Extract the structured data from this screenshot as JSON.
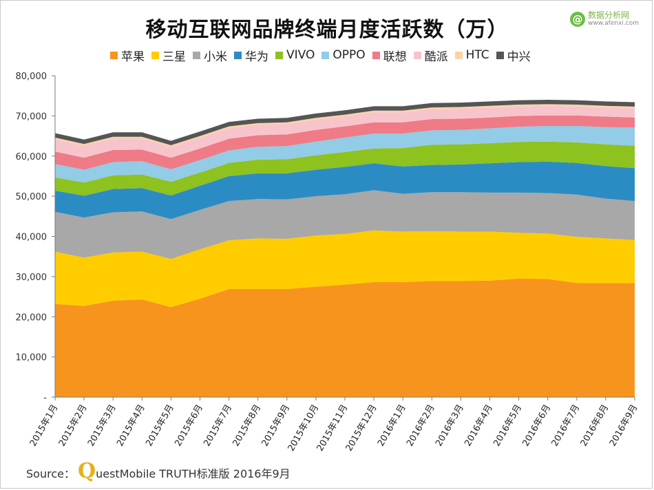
{
  "logo": {
    "mark": "@",
    "name": "数据分析网",
    "url": "www.afenxi.com"
  },
  "source": {
    "prefix": "Source：",
    "q": "Q",
    "rest": "uestMobile TRUTH标准版 2016年9月"
  },
  "chart_data": {
    "type": "area",
    "stacked": true,
    "title": "移动互联网品牌终端月度活跃数（万）",
    "xlabel": "",
    "ylabel": "",
    "ylim": [
      0,
      80000
    ],
    "yticks": [
      0,
      10000,
      20000,
      30000,
      40000,
      50000,
      60000,
      70000,
      80000
    ],
    "ytick_labels": [
      "-",
      "10,000",
      "20,000",
      "30,000",
      "40,000",
      "50,000",
      "60,000",
      "70,000",
      "80,000"
    ],
    "legend_position": "top",
    "categories": [
      "2015年1月",
      "2015年2月",
      "2015年3月",
      "2015年4月",
      "2015年5月",
      "2015年6月",
      "2015年7月",
      "2015年8月",
      "2015年9月",
      "2015年10月",
      "2015年11月",
      "2015年12月",
      "2016年1月",
      "2016年2月",
      "2016年3月",
      "2016年4月",
      "2016年5月",
      "2016年6月",
      "2016年7月",
      "2016年8月",
      "2016年9月"
    ],
    "series": [
      {
        "name": "苹果",
        "color": "#f7941d",
        "values": [
          23200,
          22700,
          24000,
          24300,
          22400,
          24500,
          26900,
          26900,
          26900,
          27500,
          28000,
          28600,
          28600,
          28900,
          28900,
          29000,
          29500,
          29400,
          28400,
          28400,
          28400
        ]
      },
      {
        "name": "三星",
        "color": "#ffcc00",
        "values": [
          13000,
          12000,
          12000,
          11900,
          12000,
          12300,
          12100,
          12600,
          12500,
          12700,
          12600,
          12900,
          12600,
          12400,
          12300,
          12200,
          11400,
          11300,
          11500,
          11100,
          10700
        ]
      },
      {
        "name": "小米",
        "color": "#a8a8a8",
        "values": [
          9900,
          10000,
          10000,
          10000,
          9900,
          9800,
          9800,
          9800,
          9800,
          9800,
          9900,
          10000,
          9400,
          9700,
          9800,
          9700,
          10000,
          10100,
          10500,
          9900,
          9700
        ]
      },
      {
        "name": "华为",
        "color": "#2b8cc4",
        "values": [
          5300,
          5400,
          5800,
          5800,
          5900,
          6000,
          6200,
          6400,
          6500,
          6600,
          6800,
          6700,
          6800,
          6800,
          6900,
          7300,
          7600,
          7800,
          7900,
          8100,
          8200
        ]
      },
      {
        "name": "VIVO",
        "color": "#8dc21f",
        "values": [
          3300,
          3300,
          3400,
          3400,
          3400,
          3300,
          3300,
          3400,
          3500,
          3600,
          3700,
          3700,
          4600,
          5000,
          5000,
          5000,
          5000,
          5000,
          5100,
          5400,
          5600
        ]
      },
      {
        "name": "OPPO",
        "color": "#92cce6",
        "values": [
          3300,
          3200,
          3300,
          3300,
          3100,
          3100,
          3100,
          3200,
          3300,
          3400,
          3600,
          3700,
          3600,
          3600,
          3600,
          3700,
          3800,
          3900,
          4100,
          4300,
          4500
        ]
      },
      {
        "name": "联想",
        "color": "#ee7b86",
        "values": [
          3100,
          3000,
          3000,
          2900,
          2900,
          2900,
          2900,
          2900,
          2900,
          2900,
          2800,
          2800,
          2800,
          2800,
          2800,
          2700,
          2700,
          2600,
          2600,
          2600,
          2500
        ]
      },
      {
        "name": "酷派",
        "color": "#f7c4cc",
        "values": [
          3100,
          3000,
          2900,
          2800,
          2700,
          2700,
          2700,
          2600,
          2600,
          2600,
          2500,
          2500,
          2500,
          2500,
          2500,
          2500,
          2400,
          2400,
          2300,
          2300,
          2300
        ]
      },
      {
        "name": "HTC",
        "color": "#fbd3a5",
        "values": [
          400,
          400,
          400,
          400,
          400,
          400,
          400,
          400,
          400,
          400,
          400,
          400,
          400,
          400,
          400,
          400,
          400,
          400,
          400,
          400,
          400
        ]
      },
      {
        "name": "中兴",
        "color": "#555555",
        "values": [
          1100,
          1100,
          1100,
          1100,
          1100,
          1100,
          1100,
          1100,
          1100,
          1100,
          1100,
          1100,
          1100,
          1100,
          1100,
          1100,
          1100,
          1100,
          1100,
          1100,
          1100
        ]
      }
    ]
  }
}
